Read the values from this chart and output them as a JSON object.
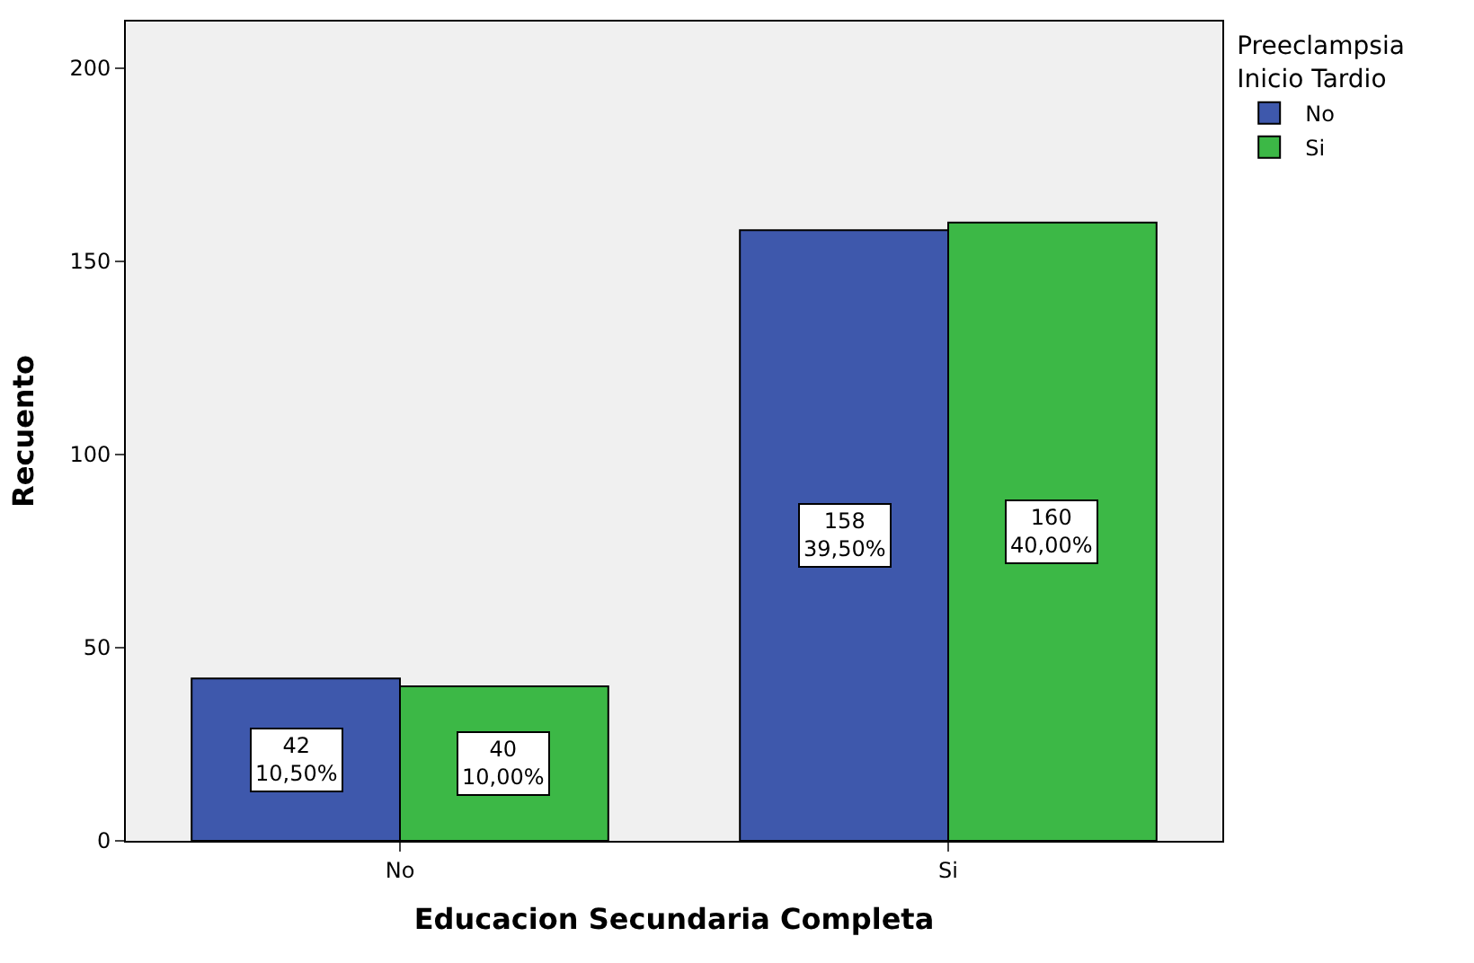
{
  "chart_data": {
    "type": "bar",
    "xlabel": "Educacion Secundaria Completa",
    "ylabel": "Recuento",
    "legend_title": "Preeclampsia\nInicio Tardio",
    "categories": [
      "No",
      "Si"
    ],
    "series": [
      {
        "name": "No",
        "color": "#3e58ac",
        "values": [
          42,
          158
        ],
        "value_labels": [
          "42\n10,50%",
          "158\n39,50%"
        ]
      },
      {
        "name": "Si",
        "color": "#3cb846",
        "values": [
          40,
          160
        ],
        "value_labels": [
          "40\n10,00%",
          "160\n40,00%"
        ]
      }
    ],
    "ylim": [
      0,
      212
    ],
    "yticks": [
      0,
      50,
      100,
      150,
      200
    ],
    "grid": false,
    "legend": "top right"
  }
}
